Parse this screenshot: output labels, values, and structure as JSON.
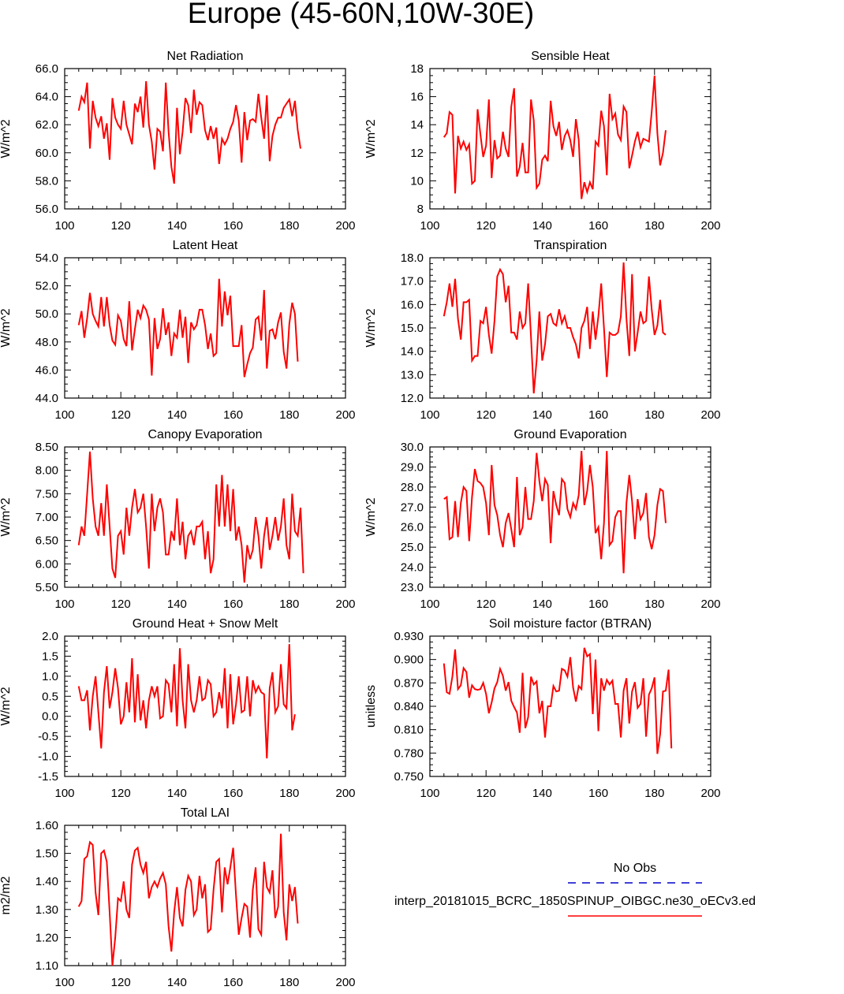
{
  "title": "Europe (45-60N,10W-30E)",
  "colors": {
    "model": "#ff0000",
    "obs": "#0000cc",
    "axis": "#000000"
  },
  "legend": {
    "obs_label": "No Obs",
    "model_label": "interp_20181015_BCRC_1850SPINUP_OIBGC.ne30_oECv3.ed"
  },
  "chart_data": [
    {
      "type": "line",
      "title": "Net Radiation",
      "xlabel": "",
      "ylabel": "W/m^2",
      "xlim": [
        100,
        200
      ],
      "ylim": [
        56,
        66
      ],
      "xticks": [
        "100",
        "120",
        "140",
        "160",
        "180",
        "200"
      ],
      "yticks": [
        "56.0",
        "58.0",
        "60.0",
        "62.0",
        "64.0",
        "66.0"
      ],
      "x_start": 105,
      "series": [
        {
          "name": "model",
          "values": [
            63.0,
            64.0,
            63.6,
            65.0,
            60.3,
            63.7,
            62.5,
            61.9,
            62.6,
            61.0,
            62.1,
            59.5,
            63.9,
            62.5,
            62.0,
            61.7,
            63.7,
            62.0,
            61.3,
            60.6,
            63.5,
            62.9,
            64.0,
            61.8,
            65.1,
            62.0,
            60.8,
            58.8,
            61.7,
            61.5,
            60.1,
            65.0,
            61.5,
            59.0,
            57.8,
            63.2,
            59.9,
            61.5,
            63.9,
            63.4,
            61.4,
            64.5,
            62.7,
            63.6,
            63.4,
            61.6,
            60.9,
            61.9,
            61.0,
            61.8,
            59.2,
            61.0,
            60.6,
            61.0,
            61.7,
            62.2,
            63.4,
            62.3,
            59.3,
            62.9,
            60.9,
            62.3,
            62.4,
            62.2,
            64.2,
            62.5,
            61.0,
            64.1,
            59.4,
            61.2,
            62.0,
            62.5,
            62.5,
            63.2,
            63.5,
            63.8,
            62.6,
            63.7,
            61.6,
            60.3
          ]
        }
      ]
    },
    {
      "type": "line",
      "title": "Sensible Heat",
      "xlabel": "",
      "ylabel": "W/m^2",
      "xlim": [
        100,
        200
      ],
      "ylim": [
        8,
        18
      ],
      "xticks": [
        "100",
        "120",
        "140",
        "160",
        "180",
        "200"
      ],
      "yticks": [
        "8",
        "10",
        "12",
        "14",
        "16",
        "18"
      ],
      "x_start": 105,
      "series": [
        {
          "name": "model",
          "values": [
            13.1,
            13.4,
            14.9,
            14.7,
            9.1,
            13.2,
            12.3,
            12.8,
            12.2,
            12.6,
            9.8,
            10.0,
            15.1,
            13.3,
            11.7,
            12.5,
            15.8,
            10.2,
            12.9,
            11.6,
            11.8,
            13.5,
            12.3,
            11.7,
            15.3,
            16.6,
            10.3,
            11.0,
            12.7,
            10.6,
            10.6,
            15.8,
            14.3,
            9.5,
            9.8,
            11.5,
            11.8,
            11.4,
            15.7,
            13.9,
            13.2,
            14.2,
            12.2,
            13.2,
            13.6,
            12.9,
            11.7,
            14.4,
            12.9,
            8.7,
            9.9,
            9.2,
            9.9,
            9.4,
            12.8,
            12.5,
            15.0,
            13.9,
            10.4,
            16.2,
            14.4,
            14.8,
            13.3,
            12.9,
            15.3,
            14.9,
            10.9,
            11.8,
            12.8,
            13.5,
            12.4,
            13.0,
            12.9,
            12.8,
            14.9,
            17.5,
            13.4,
            11.1,
            12.0,
            13.6
          ]
        }
      ]
    },
    {
      "type": "line",
      "title": "Latent Heat",
      "xlabel": "",
      "ylabel": "W/m^2",
      "xlim": [
        100,
        200
      ],
      "ylim": [
        44,
        54
      ],
      "xticks": [
        "100",
        "120",
        "140",
        "160",
        "180",
        "200"
      ],
      "yticks": [
        "44.0",
        "46.0",
        "48.0",
        "50.0",
        "52.0",
        "54.0"
      ],
      "x_start": 105,
      "series": [
        {
          "name": "model",
          "values": [
            49.2,
            50.2,
            48.3,
            49.7,
            51.5,
            50.0,
            49.5,
            49.1,
            51.2,
            49.1,
            51.2,
            49.2,
            48.1,
            47.8,
            49.9,
            49.5,
            48.2,
            47.7,
            50.9,
            47.4,
            48.9,
            50.3,
            49.7,
            50.6,
            50.3,
            49.6,
            45.6,
            49.7,
            47.5,
            48.2,
            50.4,
            48.5,
            49.4,
            47.0,
            48.6,
            48.3,
            50.3,
            48.3,
            49.8,
            46.5,
            49.4,
            48.9,
            49.2,
            50.3,
            50.3,
            49.2,
            47.5,
            48.6,
            47.0,
            47.2,
            52.5,
            49.1,
            51.6,
            49.9,
            51.3,
            47.7,
            47.7,
            47.7,
            49.2,
            45.5,
            46.4,
            47.2,
            47.6,
            49.6,
            49.8,
            48.1,
            51.7,
            46.1,
            48.8,
            48.9,
            48.2,
            49.4,
            50.1,
            47.3,
            46.1,
            49.3,
            50.8,
            50.0,
            46.6
          ]
        }
      ]
    },
    {
      "type": "line",
      "title": "Transpiration",
      "xlabel": "",
      "ylabel": "W/m^2",
      "xlim": [
        100,
        200
      ],
      "ylim": [
        12,
        18
      ],
      "xticks": [
        "100",
        "120",
        "140",
        "160",
        "180",
        "200"
      ],
      "yticks": [
        "12.0",
        "13.0",
        "14.0",
        "15.0",
        "16.0",
        "17.0",
        "18.0"
      ],
      "x_start": 105,
      "series": [
        {
          "name": "model",
          "values": [
            15.5,
            16.1,
            16.9,
            15.9,
            17.1,
            15.4,
            14.5,
            16.1,
            16.1,
            16.2,
            13.6,
            13.8,
            13.8,
            15.3,
            15.2,
            15.9,
            14.7,
            13.9,
            15.3,
            17.2,
            17.5,
            17.3,
            16.1,
            16.8,
            14.8,
            14.8,
            14.5,
            15.7,
            15.0,
            15.2,
            16.9,
            14.6,
            12.2,
            13.6,
            15.7,
            13.6,
            14.3,
            15.5,
            15.6,
            15.2,
            15.1,
            15.8,
            15.2,
            15.5,
            15.0,
            15.0,
            14.6,
            14.3,
            13.7,
            15.0,
            15.3,
            15.9,
            14.1,
            15.7,
            14.5,
            15.5,
            16.9,
            15.0,
            12.9,
            14.8,
            14.7,
            14.7,
            14.8,
            15.5,
            17.8,
            15.4,
            13.8,
            17.3,
            14.0,
            14.8,
            15.7,
            15.2,
            15.3,
            17.2,
            15.8,
            14.7,
            15.1,
            16.2,
            14.8,
            14.7
          ]
        }
      ]
    },
    {
      "type": "line",
      "title": "Canopy Evaporation",
      "xlabel": "",
      "ylabel": "W/m^2",
      "xlim": [
        100,
        200
      ],
      "ylim": [
        5.5,
        8.5
      ],
      "xticks": [
        "100",
        "120",
        "140",
        "160",
        "180",
        "200"
      ],
      "yticks": [
        "5.50",
        "6.00",
        "6.50",
        "7.00",
        "7.50",
        "8.00",
        "8.50"
      ],
      "x_start": 105,
      "series": [
        {
          "name": "model",
          "values": [
            6.4,
            6.8,
            6.6,
            7.5,
            8.4,
            7.4,
            6.8,
            6.6,
            7.3,
            6.6,
            7.7,
            6.8,
            5.9,
            5.7,
            6.6,
            6.7,
            6.2,
            7.2,
            6.6,
            7.2,
            7.6,
            7.1,
            7.2,
            7.5,
            6.8,
            5.9,
            7.5,
            6.7,
            7.2,
            7.4,
            7.1,
            6.2,
            6.2,
            6.7,
            6.5,
            7.4,
            6.4,
            6.9,
            6.1,
            6.6,
            6.7,
            6.4,
            6.8,
            6.8,
            6.9,
            6.1,
            6.7,
            5.8,
            6.1,
            7.7,
            6.8,
            7.9,
            6.8,
            7.7,
            6.7,
            7.6,
            6.5,
            6.8,
            6.4,
            5.6,
            6.4,
            6.1,
            6.3,
            7.0,
            6.6,
            5.9,
            6.6,
            7.0,
            6.3,
            6.6,
            7.0,
            6.5,
            6.8,
            7.4,
            6.4,
            6.1,
            7.5,
            6.7,
            6.6,
            7.2,
            5.8
          ]
        }
      ]
    },
    {
      "type": "line",
      "title": "Ground Evaporation",
      "xlabel": "",
      "ylabel": "W/m^2",
      "xlim": [
        100,
        200
      ],
      "ylim": [
        23,
        30
      ],
      "xticks": [
        "100",
        "120",
        "140",
        "160",
        "180",
        "200"
      ],
      "yticks": [
        "23.0",
        "24.0",
        "25.0",
        "26.0",
        "27.0",
        "28.0",
        "29.0",
        "30.0"
      ],
      "x_start": 105,
      "series": [
        {
          "name": "model",
          "values": [
            27.4,
            27.5,
            25.4,
            25.5,
            27.3,
            25.5,
            27.2,
            28.0,
            27.8,
            25.3,
            27.5,
            28.9,
            28.3,
            28.2,
            28.0,
            27.2,
            25.6,
            29.1,
            27.1,
            26.6,
            25.6,
            25.0,
            26.2,
            26.7,
            25.9,
            25.0,
            28.5,
            25.6,
            26.0,
            28.0,
            26.4,
            26.4,
            27.3,
            29.7,
            28.3,
            27.3,
            28.4,
            28.1,
            25.2,
            27.8,
            27.1,
            26.6,
            28.4,
            28.2,
            26.9,
            26.5,
            27.2,
            26.9,
            27.6,
            29.8,
            27.1,
            27.8,
            29.1,
            28.0,
            25.7,
            26.0,
            24.4,
            26.2,
            29.8,
            25.1,
            25.3,
            26.5,
            26.8,
            26.8,
            23.7,
            27.2,
            28.6,
            27.3,
            25.4,
            27.4,
            26.4,
            26.7,
            27.7,
            25.5,
            24.9,
            25.6,
            27.1,
            27.9,
            27.8,
            26.2
          ]
        }
      ]
    },
    {
      "type": "line",
      "title": "Ground Heat + Snow Melt",
      "xlabel": "",
      "ylabel": "W/m^2",
      "xlim": [
        100,
        200
      ],
      "ylim": [
        -1.5,
        2.0
      ],
      "xticks": [
        "100",
        "120",
        "140",
        "160",
        "180",
        "200"
      ],
      "yticks": [
        "-1.5",
        "-1.0",
        "-0.5",
        "0.0",
        "0.5",
        "1.0",
        "1.5",
        "2.0"
      ],
      "x_start": 105,
      "series": [
        {
          "name": "model",
          "values": [
            0.75,
            0.4,
            0.4,
            0.65,
            -0.35,
            0.5,
            1.0,
            0.1,
            -0.8,
            0.6,
            1.25,
            0.2,
            0.6,
            1.2,
            0.7,
            -0.2,
            0.0,
            0.85,
            0.1,
            1.45,
            -0.15,
            1.05,
            -0.1,
            0.4,
            -0.3,
            0.4,
            0.75,
            0.5,
            0.75,
            -0.05,
            0.0,
            0.9,
            0.8,
            0.1,
            1.3,
            -0.25,
            1.7,
            0.4,
            -0.3,
            1.3,
            0.4,
            0.1,
            0.4,
            1.0,
            0.4,
            0.45,
            0.9,
            0.8,
            0.0,
            0.1,
            0.6,
            0.2,
            1.2,
            -0.3,
            1.05,
            -0.2,
            0.3,
            1.0,
            0.1,
            0.15,
            1.0,
            0.0,
            0.9,
            0.6,
            0.75,
            0.6,
            0.55,
            -1.05,
            0.7,
            1.1,
            0.1,
            0.25,
            1.3,
            0.3,
            0.2,
            1.8,
            -0.35,
            0.05
          ]
        }
      ]
    },
    {
      "type": "line",
      "title": "Soil moisture factor (BTRAN)",
      "xlabel": "",
      "ylabel": "unitless",
      "xlim": [
        100,
        200
      ],
      "ylim": [
        0.75,
        0.93
      ],
      "xticks": [
        "100",
        "120",
        "140",
        "160",
        "180",
        "200"
      ],
      "yticks": [
        "0.750",
        "0.780",
        "0.810",
        "0.840",
        "0.870",
        "0.900",
        "0.930"
      ],
      "x_start": 105,
      "series": [
        {
          "name": "model",
          "values": [
            0.895,
            0.858,
            0.856,
            0.878,
            0.913,
            0.862,
            0.867,
            0.889,
            0.884,
            0.851,
            0.867,
            0.862,
            0.861,
            0.862,
            0.87,
            0.856,
            0.831,
            0.845,
            0.863,
            0.871,
            0.888,
            0.879,
            0.86,
            0.871,
            0.847,
            0.839,
            0.832,
            0.806,
            0.883,
            0.812,
            0.826,
            0.878,
            0.868,
            0.872,
            0.831,
            0.847,
            0.8,
            0.84,
            0.84,
            0.866,
            0.859,
            0.86,
            0.888,
            0.886,
            0.878,
            0.903,
            0.864,
            0.846,
            0.866,
            0.862,
            0.915,
            0.904,
            0.907,
            0.83,
            0.9,
            0.808,
            0.876,
            0.86,
            0.874,
            0.868,
            0.873,
            0.843,
            0.843,
            0.8,
            0.86,
            0.876,
            0.818,
            0.859,
            0.871,
            0.838,
            0.843,
            0.876,
            0.801,
            0.855,
            0.863,
            0.877,
            0.779,
            0.804,
            0.859,
            0.86,
            0.887,
            0.786
          ]
        }
      ]
    },
    {
      "type": "line",
      "title": "Total LAI",
      "xlabel": "",
      "ylabel": "m2/m2",
      "xlim": [
        100,
        200
      ],
      "ylim": [
        1.1,
        1.6
      ],
      "xticks": [
        "100",
        "120",
        "140",
        "160",
        "180",
        "200"
      ],
      "yticks": [
        "1.10",
        "1.20",
        "1.30",
        "1.40",
        "1.50",
        "1.60"
      ],
      "x_start": 105,
      "series": [
        {
          "name": "model",
          "values": [
            1.31,
            1.33,
            1.48,
            1.49,
            1.54,
            1.53,
            1.36,
            1.28,
            1.5,
            1.51,
            1.47,
            1.29,
            1.1,
            1.2,
            1.34,
            1.33,
            1.4,
            1.3,
            1.27,
            1.46,
            1.51,
            1.52,
            1.46,
            1.43,
            1.47,
            1.34,
            1.38,
            1.4,
            1.38,
            1.41,
            1.43,
            1.39,
            1.24,
            1.15,
            1.29,
            1.38,
            1.27,
            1.24,
            1.37,
            1.42,
            1.4,
            1.28,
            1.3,
            1.42,
            1.34,
            1.39,
            1.22,
            1.23,
            1.37,
            1.47,
            1.48,
            1.29,
            1.45,
            1.39,
            1.45,
            1.52,
            1.35,
            1.21,
            1.27,
            1.32,
            1.31,
            1.2,
            1.37,
            1.45,
            1.23,
            1.21,
            1.47,
            1.38,
            1.36,
            1.44,
            1.27,
            1.31,
            1.57,
            1.29,
            1.19,
            1.39,
            1.33,
            1.38,
            1.25
          ]
        }
      ]
    }
  ]
}
